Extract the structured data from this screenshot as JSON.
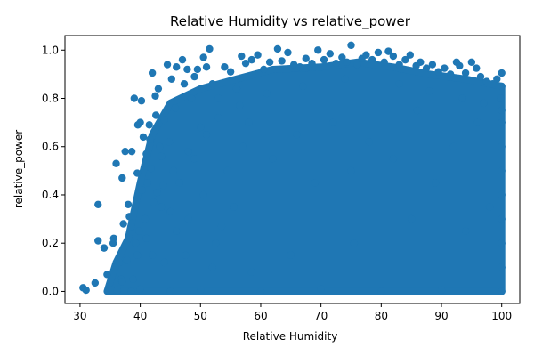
{
  "chart_data": {
    "type": "scatter",
    "title": "Relative Humidity vs relative_power",
    "xlabel": "Relative Humidity",
    "ylabel": "relative_power",
    "xlim": [
      27.5,
      103
    ],
    "ylim": [
      -0.05,
      1.06
    ],
    "x_ticks": [
      30,
      40,
      50,
      60,
      70,
      80,
      90,
      100
    ],
    "y_ticks": [
      0.0,
      0.2,
      0.4,
      0.6,
      0.8,
      1.0
    ],
    "x_tick_labels": [
      "30",
      "40",
      "50",
      "60",
      "70",
      "80",
      "90",
      "100"
    ],
    "y_tick_labels": [
      "0.0",
      "0.2",
      "0.4",
      "0.6",
      "0.8",
      "1.0"
    ],
    "grid": false,
    "legend": "none",
    "marker_color": "#1f77b4",
    "series": [
      {
        "points": [
          [
            30.5,
            0.015
          ],
          [
            31.0,
            0.005
          ],
          [
            32.5,
            0.035
          ],
          [
            33.0,
            0.21
          ],
          [
            33.0,
            0.36
          ],
          [
            34.0,
            0.18
          ],
          [
            34.5,
            0.07
          ],
          [
            34.8,
            0.0
          ],
          [
            35.2,
            0.005
          ],
          [
            35.5,
            0.2
          ],
          [
            35.6,
            0.22
          ],
          [
            35.8,
            0.1
          ],
          [
            36.0,
            0.53
          ],
          [
            36.5,
            0.12
          ],
          [
            36.8,
            0.05
          ],
          [
            37.0,
            0.47
          ],
          [
            37.2,
            0.28
          ],
          [
            37.5,
            0.58
          ],
          [
            37.8,
            0.13
          ],
          [
            38.0,
            0.36
          ],
          [
            38.2,
            0.31
          ],
          [
            38.5,
            0.27
          ],
          [
            38.6,
            0.58
          ],
          [
            38.8,
            0.05
          ],
          [
            39.0,
            0.8
          ],
          [
            39.2,
            0.2
          ],
          [
            39.5,
            0.49
          ],
          [
            39.6,
            0.69
          ],
          [
            39.8,
            0.25
          ],
          [
            40.0,
            0.7
          ],
          [
            40.2,
            0.79
          ],
          [
            40.3,
            0.42
          ],
          [
            40.5,
            0.64
          ],
          [
            40.8,
            0.3
          ],
          [
            41.0,
            0.57
          ],
          [
            41.2,
            0.45
          ],
          [
            41.5,
            0.69
          ],
          [
            41.6,
            0.63
          ],
          [
            41.8,
            0.51
          ],
          [
            42.0,
            0.905
          ],
          [
            42.2,
            0.37
          ],
          [
            42.5,
            0.81
          ],
          [
            42.6,
            0.73
          ],
          [
            42.8,
            0.41
          ],
          [
            43.0,
            0.84
          ],
          [
            43.2,
            0.6
          ],
          [
            43.5,
            0.56
          ],
          [
            43.8,
            0.44
          ],
          [
            44.0,
            0.71
          ],
          [
            44.5,
            0.94
          ],
          [
            44.8,
            0.62
          ],
          [
            45.0,
            0.33
          ],
          [
            45.2,
            0.88
          ],
          [
            45.5,
            0.5
          ],
          [
            45.8,
            0.76
          ],
          [
            46.0,
            0.93
          ],
          [
            46.5,
            0.45
          ],
          [
            47.0,
            0.96
          ],
          [
            47.3,
            0.86
          ],
          [
            47.8,
            0.92
          ],
          [
            48.0,
            0.58
          ],
          [
            48.5,
            0.8
          ],
          [
            49.0,
            0.89
          ],
          [
            49.5,
            0.92
          ],
          [
            50.0,
            0.68
          ],
          [
            50.5,
            0.97
          ],
          [
            51.0,
            0.93
          ],
          [
            51.5,
            1.005
          ],
          [
            52.0,
            0.86
          ],
          [
            53.0,
            0.8
          ],
          [
            54.0,
            0.93
          ],
          [
            55.0,
            0.91
          ],
          [
            56.0,
            0.84
          ],
          [
            56.8,
            0.975
          ],
          [
            57.5,
            0.945
          ],
          [
            58.5,
            0.96
          ],
          [
            59.5,
            0.98
          ],
          [
            60.5,
            0.92
          ],
          [
            61.5,
            0.95
          ],
          [
            62.8,
            1.005
          ],
          [
            63.5,
            0.955
          ],
          [
            64.5,
            0.99
          ],
          [
            65.5,
            0.94
          ],
          [
            66.5,
            0.93
          ],
          [
            67.5,
            0.965
          ],
          [
            68.5,
            0.945
          ],
          [
            69.5,
            1.0
          ],
          [
            70.5,
            0.96
          ],
          [
            71.5,
            0.985
          ],
          [
            72.5,
            0.945
          ],
          [
            73.5,
            0.97
          ],
          [
            74.3,
            0.95
          ],
          [
            75.0,
            1.02
          ],
          [
            76.0,
            0.94
          ],
          [
            76.8,
            0.965
          ],
          [
            77.5,
            0.98
          ],
          [
            78.5,
            0.96
          ],
          [
            79.5,
            0.99
          ],
          [
            80.5,
            0.95
          ],
          [
            81.2,
            0.995
          ],
          [
            82.0,
            0.975
          ],
          [
            83.0,
            0.94
          ],
          [
            84.0,
            0.96
          ],
          [
            84.8,
            0.98
          ],
          [
            85.8,
            0.935
          ],
          [
            86.5,
            0.95
          ],
          [
            87.5,
            0.925
          ],
          [
            88.5,
            0.94
          ],
          [
            89.5,
            0.91
          ],
          [
            90.5,
            0.925
          ],
          [
            91.5,
            0.9
          ],
          [
            92.5,
            0.95
          ],
          [
            93.0,
            0.935
          ],
          [
            94.0,
            0.905
          ],
          [
            95.0,
            0.95
          ],
          [
            95.8,
            0.925
          ],
          [
            96.5,
            0.89
          ],
          [
            97.5,
            0.87
          ],
          [
            98.5,
            0.86
          ],
          [
            99.2,
            0.88
          ],
          [
            100.0,
            0.905
          ],
          [
            100.0,
            0.85
          ],
          [
            99.8,
            0.8
          ],
          [
            100.0,
            0.75
          ],
          [
            100.0,
            0.7
          ],
          [
            100.0,
            0.6
          ],
          [
            100.0,
            0.5
          ],
          [
            100.0,
            0.4
          ],
          [
            100.0,
            0.3
          ],
          [
            100.0,
            0.2
          ],
          [
            100.0,
            0.1
          ],
          [
            100.0,
            0.0
          ],
          [
            38.5,
            0.0
          ],
          [
            40.0,
            0.01
          ],
          [
            45.0,
            0.0
          ],
          [
            50.0,
            0.005
          ],
          [
            60.0,
            0.0
          ],
          [
            70.0,
            0.01
          ],
          [
            80.0,
            0.0
          ],
          [
            90.0,
            0.005
          ],
          [
            42.0,
            0.15
          ],
          [
            44.0,
            0.12
          ],
          [
            46.0,
            0.25
          ],
          [
            48.0,
            0.3
          ],
          [
            50.5,
            0.4
          ],
          [
            52.5,
            0.2
          ],
          [
            52.0,
            0.1
          ],
          [
            53.5,
            0.27
          ],
          [
            55.5,
            0.35
          ],
          [
            57.0,
            0.6
          ],
          [
            58.0,
            0.7
          ],
          [
            62.0,
            0.55
          ],
          [
            66.0,
            0.65
          ],
          [
            69.0,
            0.45
          ],
          [
            72.0,
            0.7
          ],
          [
            75.0,
            0.5
          ],
          [
            78.0,
            0.62
          ],
          [
            82.0,
            0.55
          ],
          [
            86.0,
            0.75
          ],
          [
            89.0,
            0.45
          ],
          [
            92.0,
            0.6
          ],
          [
            96.0,
            0.7
          ],
          [
            98.0,
            0.35
          ],
          [
            94.0,
            0.25
          ],
          [
            85.0,
            0.3
          ],
          [
            75.5,
            0.2
          ],
          [
            65.0,
            0.15
          ],
          [
            58.5,
            0.08
          ],
          [
            54.5,
            0.5
          ],
          [
            56.5,
            0.77
          ],
          [
            61.0,
            0.82
          ],
          [
            67.0,
            0.85
          ],
          [
            74.0,
            0.88
          ],
          [
            83.0,
            0.86
          ],
          [
            88.0,
            0.83
          ],
          [
            93.5,
            0.8
          ],
          [
            97.0,
            0.78
          ],
          [
            36.2,
            0.005
          ],
          [
            37.0,
            0.04
          ],
          [
            39.5,
            0.15
          ],
          [
            41.0,
            0.22
          ],
          [
            43.5,
            0.35
          ],
          [
            47.5,
            0.15
          ],
          [
            49.0,
            0.55
          ],
          [
            51.0,
            0.65
          ],
          [
            53.0,
            0.72
          ]
        ]
      }
    ]
  }
}
